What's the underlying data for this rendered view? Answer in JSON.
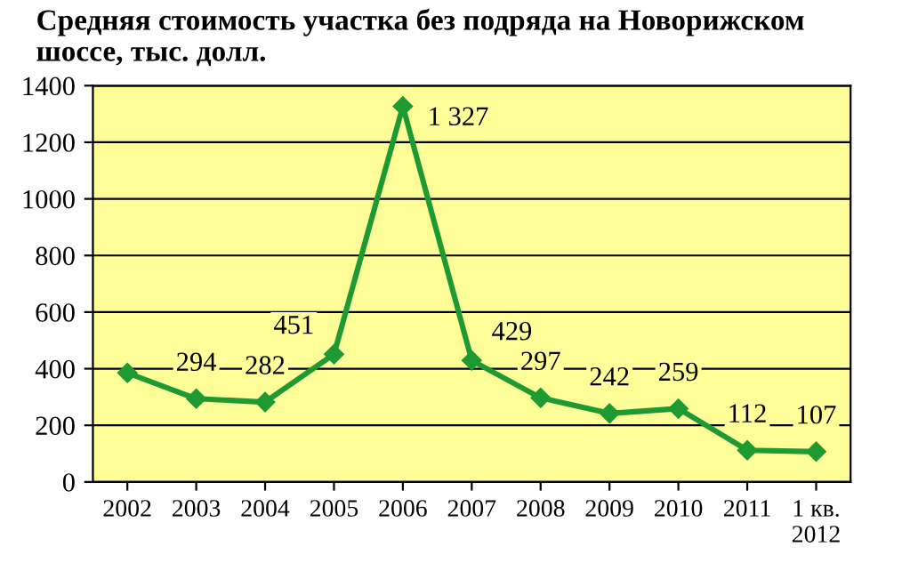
{
  "chart_data": {
    "type": "line",
    "title": "Средняя стоимость участка без подряда на Новорижском\nшоссе, тыс. долл.",
    "categories": [
      "2002",
      "2003",
      "2004",
      "2005",
      "2006",
      "2007",
      "2008",
      "2009",
      "2010",
      "2011",
      "1 кв.\n2012"
    ],
    "series": [
      {
        "color": "#1f9a32",
        "values": [
          385,
          294,
          282,
          451,
          1327,
          429,
          297,
          242,
          259,
          112,
          107
        ]
      }
    ],
    "value_labels": [
      null,
      "294",
      "282",
      "451",
      "1 327",
      "429",
      "297",
      "242",
      "259",
      "112",
      "107"
    ],
    "ylim": [
      0,
      1400
    ],
    "yticks": [
      0,
      200,
      400,
      600,
      800,
      1000,
      1200,
      1400
    ],
    "grid": "y",
    "marker": "diamond",
    "line_style": "solid",
    "legend": false
  }
}
